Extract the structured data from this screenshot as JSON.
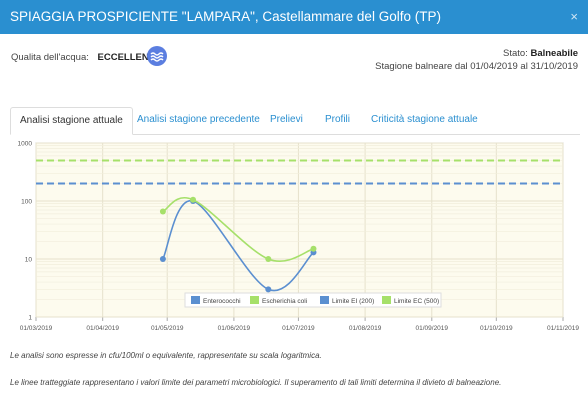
{
  "header": {
    "title": "SPIAGGIA PROSPICIENTE \"LAMPARA\", Castellammare del Golfo (TP)",
    "close": "×"
  },
  "quality": {
    "label": "Qualita dell'acqua:",
    "value": "ECCELLENTE",
    "icon": "wave-icon"
  },
  "status": {
    "label": "Stato:",
    "value": "Balneabile",
    "season": "Stagione balneare dal 01/04/2019 al 31/10/2019"
  },
  "tabs": [
    {
      "label": "Analisi stagione attuale",
      "active": true
    },
    {
      "label": "Analisi stagione precedente",
      "active": false
    },
    {
      "label": "Prelievi",
      "active": false
    },
    {
      "label": "Profili",
      "active": false
    },
    {
      "label": "Criticità stagione attuale",
      "active": false
    }
  ],
  "chart_data": {
    "type": "line",
    "yscale": "log",
    "ylim": [
      1,
      1000
    ],
    "yticks": [
      "1",
      "10",
      "100",
      "1000"
    ],
    "xlim": [
      "2019-03-01",
      "2019-11-01"
    ],
    "xticks": [
      "01/03/2019",
      "01/04/2019",
      "01/05/2019",
      "01/06/2019",
      "01/07/2019",
      "01/08/2019",
      "01/09/2019",
      "01/10/2019",
      "01/11/2019"
    ],
    "grid": true,
    "legend": "bottom-right",
    "series": [
      {
        "name": "Enterococchi",
        "color": "#5b8fd0",
        "points": [
          [
            "2019-04-29",
            10
          ],
          [
            "2019-05-13",
            100
          ],
          [
            "2019-06-17",
            3
          ],
          [
            "2019-07-08",
            13
          ]
        ]
      },
      {
        "name": "Escherichia coli",
        "color": "#a6e06a",
        "points": [
          [
            "2019-04-29",
            66
          ],
          [
            "2019-05-13",
            105
          ],
          [
            "2019-06-17",
            10
          ],
          [
            "2019-07-08",
            15
          ]
        ]
      },
      {
        "name": "Limite EI (200)",
        "color": "#5b8fd0",
        "dashed": true,
        "value": 200
      },
      {
        "name": "Limite EC (500)",
        "color": "#a6e06a",
        "dashed": true,
        "value": 500
      }
    ]
  },
  "notes": [
    "Le analisi sono espresse in cfu/100ml o equivalente, rappresentate su scala logaritmica.",
    "Le linee tratteggiate rappresentano i valori limite dei parametri microbiologici. Il superamento di tali limiti determina il divieto di balneazione."
  ]
}
